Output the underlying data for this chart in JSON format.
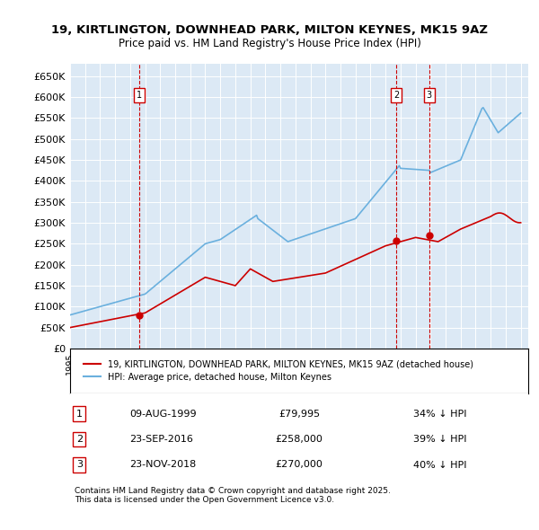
{
  "title": "19, KIRTLINGTON, DOWNHEAD PARK, MILTON KEYNES, MK15 9AZ",
  "subtitle": "Price paid vs. HM Land Registry's House Price Index (HPI)",
  "bg_color": "#dce9f5",
  "plot_bg_color": "#dce9f5",
  "hpi_color": "#6ab0de",
  "price_color": "#cc0000",
  "vline_color": "#cc0000",
  "ylim": [
    0,
    680000
  ],
  "yticks": [
    0,
    50000,
    100000,
    150000,
    200000,
    250000,
    300000,
    350000,
    400000,
    450000,
    500000,
    550000,
    600000,
    650000
  ],
  "ytick_labels": [
    "£0",
    "£50K",
    "£100K",
    "£150K",
    "£200K",
    "£250K",
    "£300K",
    "£350K",
    "£400K",
    "£450K",
    "£500K",
    "£550K",
    "£600K",
    "£650K"
  ],
  "xlim_start": 1995.0,
  "xlim_end": 2025.5,
  "transactions": [
    {
      "year": 1999.608,
      "price": 79995,
      "label": "1"
    },
    {
      "year": 2016.728,
      "price": 258000,
      "label": "2"
    },
    {
      "year": 2018.897,
      "price": 270000,
      "label": "3"
    }
  ],
  "table_rows": [
    {
      "num": "1",
      "date": "09-AUG-1999",
      "price": "£79,995",
      "hpi": "34% ↓ HPI"
    },
    {
      "num": "2",
      "date": "23-SEP-2016",
      "price": "£258,000",
      "hpi": "39% ↓ HPI"
    },
    {
      "num": "3",
      "date": "23-NOV-2018",
      "price": "£270,000",
      "hpi": "40% ↓ HPI"
    }
  ],
  "legend_line1": "19, KIRTLINGTON, DOWNHEAD PARK, MILTON KEYNES, MK15 9AZ (detached house)",
  "legend_line2": "HPI: Average price, detached house, Milton Keynes",
  "footnote": "Contains HM Land Registry data © Crown copyright and database right 2025.\nThis data is licensed under the Open Government Licence v3.0.",
  "hpi_data_years": [
    1995.0,
    1995.083,
    1995.167,
    1995.25,
    1995.333,
    1995.417,
    1995.5,
    1995.583,
    1995.667,
    1995.75,
    1995.833,
    1995.917,
    1996.0,
    1996.083,
    1996.167,
    1996.25,
    1996.333,
    1996.417,
    1996.5,
    1996.583,
    1996.667,
    1996.75,
    1996.833,
    1996.917,
    1997.0,
    1997.083,
    1997.167,
    1997.25,
    1997.333,
    1997.417,
    1997.5,
    1997.583,
    1997.667,
    1997.75,
    1997.833,
    1997.917,
    1998.0,
    1998.083,
    1998.167,
    1998.25,
    1998.333,
    1998.417,
    1998.5,
    1998.583,
    1998.667,
    1998.75,
    1998.833,
    1998.917,
    1999.0,
    1999.083,
    1999.167,
    1999.25,
    1999.333,
    1999.417,
    1999.5,
    1999.583,
    1999.667,
    1999.75,
    1999.833,
    1999.917,
    2000.0,
    2000.083,
    2000.167,
    2000.25,
    2000.333,
    2000.417,
    2000.5,
    2000.583,
    2000.667,
    2000.75,
    2000.833,
    2000.917,
    2001.0,
    2001.083,
    2001.167,
    2001.25,
    2001.333,
    2001.417,
    2001.5,
    2001.583,
    2001.667,
    2001.75,
    2001.833,
    2001.917,
    2002.0,
    2002.083,
    2002.167,
    2002.25,
    2002.333,
    2002.417,
    2002.5,
    2002.583,
    2002.667,
    2002.75,
    2002.833,
    2002.917,
    2003.0,
    2003.083,
    2003.167,
    2003.25,
    2003.333,
    2003.417,
    2003.5,
    2003.583,
    2003.667,
    2003.75,
    2003.833,
    2003.917,
    2004.0,
    2004.083,
    2004.167,
    2004.25,
    2004.333,
    2004.417,
    2004.5,
    2004.583,
    2004.667,
    2004.75,
    2004.833,
    2004.917,
    2005.0,
    2005.083,
    2005.167,
    2005.25,
    2005.333,
    2005.417,
    2005.5,
    2005.583,
    2005.667,
    2005.75,
    2005.833,
    2005.917,
    2006.0,
    2006.083,
    2006.167,
    2006.25,
    2006.333,
    2006.417,
    2006.5,
    2006.583,
    2006.667,
    2006.75,
    2006.833,
    2006.917,
    2007.0,
    2007.083,
    2007.167,
    2007.25,
    2007.333,
    2007.417,
    2007.5,
    2007.583,
    2007.667,
    2007.75,
    2007.833,
    2007.917,
    2008.0,
    2008.083,
    2008.167,
    2008.25,
    2008.333,
    2008.417,
    2008.5,
    2008.583,
    2008.667,
    2008.75,
    2008.833,
    2008.917,
    2009.0,
    2009.083,
    2009.167,
    2009.25,
    2009.333,
    2009.417,
    2009.5,
    2009.583,
    2009.667,
    2009.75,
    2009.833,
    2009.917,
    2010.0,
    2010.083,
    2010.167,
    2010.25,
    2010.333,
    2010.417,
    2010.5,
    2010.583,
    2010.667,
    2010.75,
    2010.833,
    2010.917,
    2011.0,
    2011.083,
    2011.167,
    2011.25,
    2011.333,
    2011.417,
    2011.5,
    2011.583,
    2011.667,
    2011.75,
    2011.833,
    2011.917,
    2012.0,
    2012.083,
    2012.167,
    2012.25,
    2012.333,
    2012.417,
    2012.5,
    2012.583,
    2012.667,
    2012.75,
    2012.833,
    2012.917,
    2013.0,
    2013.083,
    2013.167,
    2013.25,
    2013.333,
    2013.417,
    2013.5,
    2013.583,
    2013.667,
    2013.75,
    2013.833,
    2013.917,
    2014.0,
    2014.083,
    2014.167,
    2014.25,
    2014.333,
    2014.417,
    2014.5,
    2014.583,
    2014.667,
    2014.75,
    2014.833,
    2014.917,
    2015.0,
    2015.083,
    2015.167,
    2015.25,
    2015.333,
    2015.417,
    2015.5,
    2015.583,
    2015.667,
    2015.75,
    2015.833,
    2015.917,
    2016.0,
    2016.083,
    2016.167,
    2016.25,
    2016.333,
    2016.417,
    2016.5,
    2016.583,
    2016.667,
    2016.75,
    2016.833,
    2016.917,
    2017.0,
    2017.083,
    2017.167,
    2017.25,
    2017.333,
    2017.417,
    2017.5,
    2017.583,
    2017.667,
    2017.75,
    2017.833,
    2017.917,
    2018.0,
    2018.083,
    2018.167,
    2018.25,
    2018.333,
    2018.417,
    2018.5,
    2018.583,
    2018.667,
    2018.75,
    2018.833,
    2018.917,
    2019.0,
    2019.083,
    2019.167,
    2019.25,
    2019.333,
    2019.417,
    2019.5,
    2019.583,
    2019.667,
    2019.75,
    2019.833,
    2019.917,
    2020.0,
    2020.083,
    2020.167,
    2020.25,
    2020.333,
    2020.417,
    2020.5,
    2020.583,
    2020.667,
    2020.75,
    2020.833,
    2020.917,
    2021.0,
    2021.083,
    2021.167,
    2021.25,
    2021.333,
    2021.417,
    2021.5,
    2021.583,
    2021.667,
    2021.75,
    2021.833,
    2021.917,
    2022.0,
    2022.083,
    2022.167,
    2022.25,
    2022.333,
    2022.417,
    2022.5,
    2022.583,
    2022.667,
    2022.75,
    2022.833,
    2022.917,
    2023.0,
    2023.083,
    2023.167,
    2023.25,
    2023.333,
    2023.417,
    2023.5,
    2023.583,
    2023.667,
    2023.75,
    2023.833,
    2023.917,
    2024.0,
    2024.083,
    2024.167,
    2024.25,
    2024.333,
    2024.417,
    2024.5,
    2024.583,
    2024.667,
    2024.75,
    2024.833,
    2024.917,
    2025.0
  ]
}
